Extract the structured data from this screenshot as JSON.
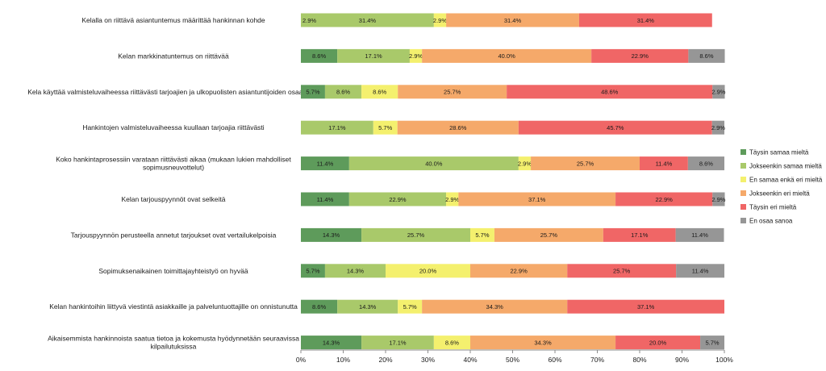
{
  "chart_data": {
    "type": "bar",
    "orientation": "horizontal",
    "stacked": "percent",
    "categories": [
      "Kelalla on riittävä asiantuntemus määrittää hankinnan kohde",
      "Kelan markkinatuntemus on riittävää",
      "Kela käyttää valmisteluvaiheessa riittävästi tarjoajien ja ulkopuolisten asiantuntijoiden osaamista",
      "Hankintojen valmisteluvaiheessa kuullaan tarjoajia riittävästi",
      "Koko hankintaprosessiin varataan riittävästi aikaa (mukaan lukien mahdolliset sopimusneuvottelut)",
      "Kelan tarjouspyynnöt ovat selkeitä",
      "Tarjouspyynnön perusteella annetut tarjoukset ovat vertailukelpoisia",
      "Sopimuksenaikainen toimittajayhteistyö on hyvää",
      "Kelan hankintoihin liittyvä viestintä asiakkaille ja palveluntuottajille on onnistunutta",
      "Aikaisemmista hankinnoista saatua tietoa ja kokemusta hyödynnetään seuraavissa kilpailutuksissa"
    ],
    "category_lines": [
      [
        "Kelalla on riittävä asiantuntemus määrittää hankinnan kohde"
      ],
      [
        "Kelan markkinatuntemus on riittävää"
      ],
      [
        "Kela käyttää valmisteluvaiheessa riittävästi tarjoajien ja ulkopuolisten asiantuntijoiden osaamista"
      ],
      [
        "Hankintojen valmisteluvaiheessa kuullaan tarjoajia riittävästi"
      ],
      [
        "Koko hankintaprosessiin varataan riittävästi aikaa (mukaan lukien mahdolliset",
        "sopimusneuvottelut)"
      ],
      [
        "Kelan tarjouspyynnöt ovat selkeitä"
      ],
      [
        "Tarjouspyynnön perusteella annetut tarjoukset ovat vertailukelpoisia"
      ],
      [
        "Sopimuksenaikainen toimittajayhteistyö on hyvää"
      ],
      [
        "Kelan hankintoihin liittyvä viestintä asiakkaille ja palveluntuottajille on onnistunutta"
      ],
      [
        "Aikaisemmista hankinnoista saatua tietoa ja kokemusta hyödynnetään seuraavissa",
        "kilpailutuksissa"
      ]
    ],
    "series": [
      {
        "name": "Täysin samaa mieltä",
        "color": "#5e9b5b",
        "values": [
          0,
          8.6,
          5.7,
          0,
          11.4,
          11.4,
          14.3,
          5.7,
          8.6,
          14.3
        ],
        "labels": [
          "",
          "8.6%",
          "5.7%",
          "",
          "11.4%",
          "11.4%",
          "14.3%",
          "5.7%",
          "8.6%",
          "14.3%"
        ]
      },
      {
        "name": "Jokseenkin samaa mieltä",
        "color": "#a9c96a",
        "values": [
          31.4,
          17.1,
          8.6,
          17.1,
          40.0,
          22.9,
          25.7,
          14.3,
          14.3,
          17.1
        ],
        "labels": [
          "31.4%",
          "17.1%",
          "8.6%",
          "17.1%",
          "40.0%",
          "22.9%",
          "25.7%",
          "14.3%",
          "14.3%",
          "17.1%"
        ]
      },
      {
        "name": "En samaa enkä eri mieltä",
        "color": "#f4f06e",
        "values": [
          2.9,
          2.9,
          8.6,
          5.7,
          2.9,
          2.9,
          5.7,
          20.0,
          5.7,
          8.6
        ],
        "labels": [
          "2.9%",
          "2.9%",
          "8.6%",
          "5.7%",
          "2.9%",
          "2.9%",
          "5.7%",
          "20.0%",
          "5.7%",
          "8.6%"
        ]
      },
      {
        "name": "Jokseenkin eri mieltä",
        "color": "#f5a96a",
        "values": [
          31.4,
          40.0,
          25.7,
          28.6,
          25.7,
          37.1,
          25.7,
          22.9,
          34.3,
          34.3
        ],
        "labels": [
          "31.4%",
          "40.0%",
          "25.7%",
          "28.6%",
          "25.7%",
          "37.1%",
          "25.7%",
          "22.9%",
          "34.3%",
          "34.3%"
        ]
      },
      {
        "name": "Täysin eri mieltä",
        "color": "#f06666",
        "values": [
          31.4,
          22.9,
          48.6,
          45.7,
          11.4,
          22.9,
          17.1,
          25.7,
          37.1,
          20.0
        ],
        "labels": [
          "31.4%",
          "22.9%",
          "48.6%",
          "45.7%",
          "11.4%",
          "22.9%",
          "17.1%",
          "25.7%",
          "37.1%",
          "20.0%"
        ]
      },
      {
        "name": "En osaa sanoa",
        "color": "#969696",
        "values": [
          0,
          8.6,
          2.9,
          2.9,
          8.6,
          2.9,
          11.4,
          11.4,
          0,
          5.7
        ],
        "labels": [
          "",
          "8.6%",
          "2.9%",
          "2.9%",
          "8.6%",
          "2.9%",
          "11.4%",
          "11.4%",
          "",
          "5.7%"
        ]
      }
    ],
    "extra_labels": [
      {
        "category": 0,
        "text": "2.9%"
      }
    ],
    "xlim": [
      0,
      100
    ],
    "xticks": [
      "0%",
      "10%",
      "20%",
      "30%",
      "40%",
      "50%",
      "60%",
      "70%",
      "80%",
      "90%",
      "100%"
    ],
    "title": "",
    "xlabel": "",
    "ylabel": "",
    "grid": false,
    "legend_position": "right"
  }
}
